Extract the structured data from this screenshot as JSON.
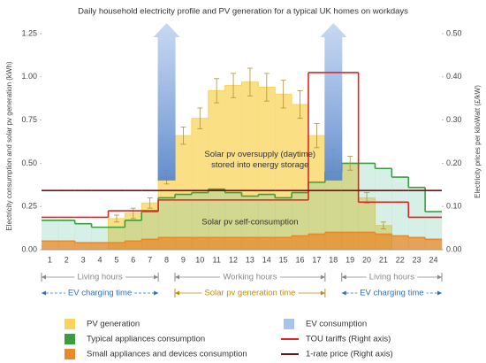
{
  "chart_data": {
    "type": "step",
    "title": "Daily household electricity profile and PV generation for a typical UK homes on workdays",
    "ylabel": "Electricity consumption and solar pv generation (kWh)",
    "y2label": "Electricity prices per kiloWatt (£/kW)",
    "categories": [
      "1",
      "2",
      "3",
      "4",
      "5",
      "6",
      "7",
      "8",
      "9",
      "10",
      "11",
      "12",
      "13",
      "14",
      "15",
      "16",
      "17",
      "18",
      "19",
      "20",
      "21",
      "22",
      "23",
      "24"
    ],
    "ylim": [
      0,
      1.25
    ],
    "yticks": [
      {
        "value": 0,
        "label": "0.00"
      },
      0.25,
      {
        "value": 0.5,
        "label": "0.50"
      },
      0.75,
      {
        "value": 1,
        "label": "1.00"
      },
      1.25
    ],
    "y2lim": [
      0,
      0.5
    ],
    "y2ticks": [
      {
        "value": 0,
        "label": "0.00"
      },
      {
        "value": 0.1,
        "label": "0.10"
      },
      {
        "value": 0.2,
        "label": "0.20"
      },
      {
        "value": 0.3,
        "label": "0.30"
      },
      {
        "value": 0.4,
        "label": "0.40"
      },
      {
        "value": 0.5,
        "label": "0.50"
      }
    ],
    "series": [
      {
        "name": "PV generation",
        "style": "area",
        "color": "#f8d45c",
        "values": [
          0,
          0,
          0,
          0,
          0.18,
          0.21,
          0.27,
          0.42,
          0.66,
          0.76,
          0.92,
          0.95,
          0.97,
          0.94,
          0.9,
          0.84,
          0.66,
          0.52,
          0.5,
          0.3,
          0.14,
          0,
          0,
          0
        ],
        "errors": [
          null,
          null,
          null,
          null,
          0.02,
          0.03,
          0.03,
          0.04,
          0.05,
          0.06,
          0.07,
          0.07,
          0.08,
          0.08,
          0.08,
          0.08,
          0.07,
          0.06,
          0.04,
          0.03,
          0.02,
          null,
          null,
          null
        ]
      },
      {
        "name": "Typical appliances consumption",
        "style": "area",
        "color": "#3a9e3f",
        "values": [
          0.17,
          0.17,
          0.15,
          0.13,
          0.13,
          0.17,
          0.22,
          0.3,
          0.32,
          0.33,
          0.35,
          0.33,
          0.31,
          0.32,
          0.3,
          0.33,
          0.39,
          0.45,
          0.5,
          0.5,
          0.47,
          0.42,
          0.36,
          0.22
        ]
      },
      {
        "name": "Small appliances and devices consumption",
        "style": "area",
        "color": "#e8892a",
        "values": [
          0.05,
          0.05,
          0.04,
          0.04,
          0.04,
          0.05,
          0.06,
          0.07,
          0.07,
          0.07,
          0.07,
          0.07,
          0.07,
          0.07,
          0.07,
          0.08,
          0.09,
          0.1,
          0.1,
          0.1,
          0.09,
          0.08,
          0.07,
          0.06
        ]
      },
      {
        "name": "EV consumption",
        "style": "arrow",
        "color": "#a8c4ea",
        "x": [
          8,
          18
        ]
      },
      {
        "name": "TOU tariffs (Right axis)",
        "style": "line",
        "axis": "y2",
        "color": "#e02424",
        "values": [
          0.075,
          0.075,
          0.075,
          0.075,
          0.09,
          0.09,
          0.09,
          0.115,
          0.115,
          0.115,
          0.115,
          0.115,
          0.115,
          0.115,
          0.115,
          0.115,
          0.41,
          0.41,
          0.41,
          0.11,
          0.11,
          0.11,
          0.075,
          0.075
        ]
      },
      {
        "name": "1-rate price (Right axis)",
        "style": "line",
        "axis": "y2",
        "color": "#7a0e0e",
        "values": [
          0.137,
          0.137,
          0.137,
          0.137,
          0.137,
          0.137,
          0.137,
          0.137,
          0.137,
          0.137,
          0.137,
          0.137,
          0.137,
          0.137,
          0.137,
          0.137,
          0.137,
          0.137,
          0.137,
          0.137,
          0.137,
          0.137,
          0.137,
          0.137
        ]
      }
    ],
    "annotations": [
      "Solar pv oversupply (daytime)",
      "stored into energy storage",
      "Solar pv self-consumption"
    ],
    "periods": [
      [
        {
          "label": "Living hours",
          "from": 0.5,
          "to": 7.5,
          "color": "#888888"
        },
        {
          "label": "Working hours",
          "from": 8.5,
          "to": 17.5,
          "color": "#888888"
        },
        {
          "label": "Living hours",
          "from": 18.5,
          "to": 24.5,
          "color": "#888888"
        }
      ],
      [
        {
          "label": "EV charging time",
          "from": 0.5,
          "to": 7.5,
          "color": "#2a6fc0"
        },
        {
          "label": "Solar pv generation time",
          "from": 8.5,
          "to": 17.5,
          "color": "#c08a10"
        },
        {
          "label": "EV charging time",
          "from": 18.5,
          "to": 24.5,
          "color": "#2a6fc0"
        }
      ]
    ]
  }
}
